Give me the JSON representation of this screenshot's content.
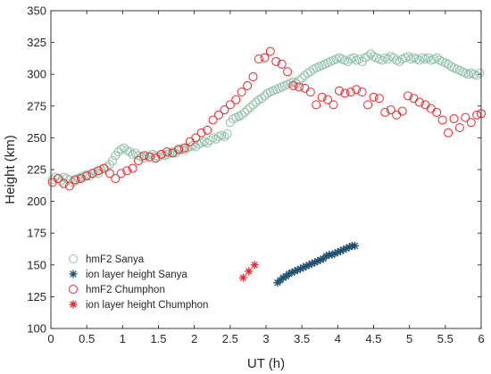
{
  "chart_data": {
    "type": "scatter",
    "xlabel": "UT (h)",
    "ylabel": "Height (km)",
    "xlim": [
      0,
      6
    ],
    "ylim": [
      100,
      350
    ],
    "xticks": [
      0,
      0.5,
      1,
      1.5,
      2,
      2.5,
      3,
      3.5,
      4,
      4.5,
      5,
      5.5,
      6
    ],
    "yticks": [
      100,
      125,
      150,
      175,
      200,
      225,
      250,
      275,
      300,
      325,
      350
    ],
    "xtick_labels": [
      "0",
      "0.5",
      "1",
      "1.5",
      "2",
      "2.5",
      "3",
      "3.5",
      "4",
      "4.5",
      "5",
      "5.5",
      "6"
    ],
    "ytick_labels": [
      "100",
      "125",
      "150",
      "175",
      "200",
      "225",
      "250",
      "275",
      "300",
      "325",
      "350"
    ],
    "grid": false,
    "legend": "lower-left",
    "series": [
      {
        "name": "hmF2 Sanya",
        "marker": "circle",
        "color": "#8fbfa8",
        "x": [
          0.02,
          0.06,
          0.1,
          0.14,
          0.18,
          0.22,
          0.26,
          0.3,
          0.34,
          0.38,
          0.42,
          0.46,
          0.5,
          0.54,
          0.58,
          0.62,
          0.66,
          0.7,
          0.74,
          0.78,
          0.82,
          0.86,
          0.9,
          0.94,
          0.98,
          1.02,
          1.06,
          1.1,
          1.14,
          1.18,
          1.22,
          1.26,
          1.3,
          1.34,
          1.38,
          1.42,
          1.46,
          1.5,
          1.54,
          1.58,
          1.62,
          1.66,
          1.7,
          1.74,
          1.78,
          1.82,
          1.86,
          1.9,
          1.94,
          1.98,
          2.02,
          2.06,
          2.1,
          2.14,
          2.18,
          2.22,
          2.26,
          2.3,
          2.34,
          2.38,
          2.42,
          2.46,
          2.5,
          2.54,
          2.58,
          2.62,
          2.66,
          2.7,
          2.74,
          2.78,
          2.82,
          2.86,
          2.9,
          2.94,
          2.98,
          3.02,
          3.06,
          3.1,
          3.14,
          3.18,
          3.22,
          3.26,
          3.3,
          3.34,
          3.38,
          3.42,
          3.46,
          3.5,
          3.54,
          3.58,
          3.62,
          3.66,
          3.7,
          3.74,
          3.78,
          3.82,
          3.86,
          3.9,
          3.94,
          3.98,
          4.02,
          4.06,
          4.1,
          4.14,
          4.18,
          4.22,
          4.26,
          4.3,
          4.34,
          4.38,
          4.42,
          4.46,
          4.5,
          4.54,
          4.58,
          4.62,
          4.66,
          4.7,
          4.74,
          4.78,
          4.82,
          4.86,
          4.9,
          4.94,
          4.98,
          5.02,
          5.06,
          5.1,
          5.14,
          5.18,
          5.22,
          5.26,
          5.3,
          5.34,
          5.38,
          5.42,
          5.46,
          5.5,
          5.54,
          5.58,
          5.62,
          5.66,
          5.7,
          5.74,
          5.78,
          5.82,
          5.86,
          5.9,
          5.94,
          5.98
        ],
        "y": [
          217,
          219,
          218,
          216,
          219,
          218,
          217,
          215,
          216,
          218,
          219,
          220,
          221,
          220,
          222,
          223,
          222,
          225,
          226,
          227,
          229,
          232,
          236,
          239,
          241,
          242,
          240,
          239,
          237,
          238,
          236,
          235,
          234,
          236,
          235,
          237,
          236,
          235,
          237,
          236,
          237,
          238,
          239,
          238,
          240,
          241,
          240,
          242,
          243,
          244,
          243,
          245,
          246,
          247,
          246,
          248,
          250,
          249,
          251,
          252,
          251,
          253,
          262,
          265,
          266,
          267,
          268,
          270,
          272,
          274,
          276,
          278,
          280,
          281,
          283,
          285,
          286,
          287,
          288,
          289,
          290,
          291,
          292,
          293,
          294,
          293,
          295,
          297,
          299,
          301,
          302,
          304,
          305,
          306,
          307,
          308,
          309,
          310,
          311,
          312,
          313,
          312,
          311,
          310,
          312,
          313,
          311,
          312,
          310,
          313,
          314,
          316,
          314,
          313,
          312,
          311,
          313,
          312,
          314,
          313,
          311,
          310,
          312,
          313,
          314,
          312,
          313,
          312,
          311,
          313,
          312,
          313,
          311,
          312,
          313,
          311,
          310,
          309,
          308,
          306,
          305,
          304,
          303,
          302,
          301,
          300,
          301,
          300,
          299,
          301
        ]
      },
      {
        "name": "ion layer height Sanya",
        "marker": "star",
        "color": "#1f4e6e",
        "x": [
          3.16,
          3.2,
          3.24,
          3.28,
          3.32,
          3.36,
          3.4,
          3.44,
          3.48,
          3.52,
          3.56,
          3.6,
          3.64,
          3.68,
          3.72,
          3.76,
          3.8,
          3.84,
          3.88,
          3.92,
          3.96,
          4.0,
          4.04,
          4.08,
          4.12,
          4.16,
          4.2,
          4.24
        ],
        "y": [
          136,
          138,
          140,
          141,
          143,
          144,
          145,
          146,
          147,
          148,
          149,
          150,
          151,
          152,
          153,
          154,
          155,
          157,
          158,
          158,
          159,
          160,
          161,
          162,
          163,
          164,
          165,
          165
        ]
      },
      {
        "name": "hmF2 Chumphon",
        "marker": "circle",
        "color": "#e8262b",
        "x": [
          0.02,
          0.1,
          0.18,
          0.26,
          0.34,
          0.42,
          0.5,
          0.58,
          0.66,
          0.74,
          0.82,
          0.9,
          0.98,
          1.06,
          1.14,
          1.22,
          1.3,
          1.38,
          1.46,
          1.54,
          1.62,
          1.7,
          1.78,
          1.86,
          1.94,
          2.02,
          2.1,
          2.18,
          2.26,
          2.34,
          2.42,
          2.5,
          2.58,
          2.66,
          2.74,
          2.82,
          2.9,
          2.98,
          3.06,
          3.14,
          3.22,
          3.3,
          3.38,
          3.46,
          3.54,
          3.62,
          3.7,
          3.78,
          3.86,
          3.94,
          4.02,
          4.1,
          4.18,
          4.26,
          4.34,
          4.42,
          4.5,
          4.58,
          4.66,
          4.74,
          4.82,
          4.9,
          4.98,
          5.06,
          5.14,
          5.22,
          5.3,
          5.38,
          5.46,
          5.54,
          5.62,
          5.7,
          5.78,
          5.86,
          5.94,
          6.0
        ],
        "y": [
          215,
          218,
          214,
          212,
          217,
          218,
          220,
          222,
          224,
          226,
          222,
          218,
          222,
          224,
          226,
          232,
          236,
          235,
          234,
          237,
          239,
          238,
          241,
          242,
          247,
          250,
          254,
          256,
          264,
          268,
          272,
          276,
          280,
          286,
          291,
          298,
          312,
          313,
          318,
          310,
          308,
          302,
          291,
          290,
          289,
          286,
          276,
          282,
          280,
          276,
          287,
          285,
          286,
          288,
          286,
          276,
          282,
          281,
          270,
          272,
          268,
          271,
          283,
          281,
          278,
          276,
          273,
          270,
          264,
          254,
          265,
          258,
          266,
          262,
          268,
          269
        ]
      },
      {
        "name": "ion layer height Chumphon",
        "marker": "star",
        "color": "#e8262b",
        "x": [
          2.68,
          2.76,
          2.84
        ],
        "y": [
          140,
          145,
          150
        ]
      }
    ]
  }
}
